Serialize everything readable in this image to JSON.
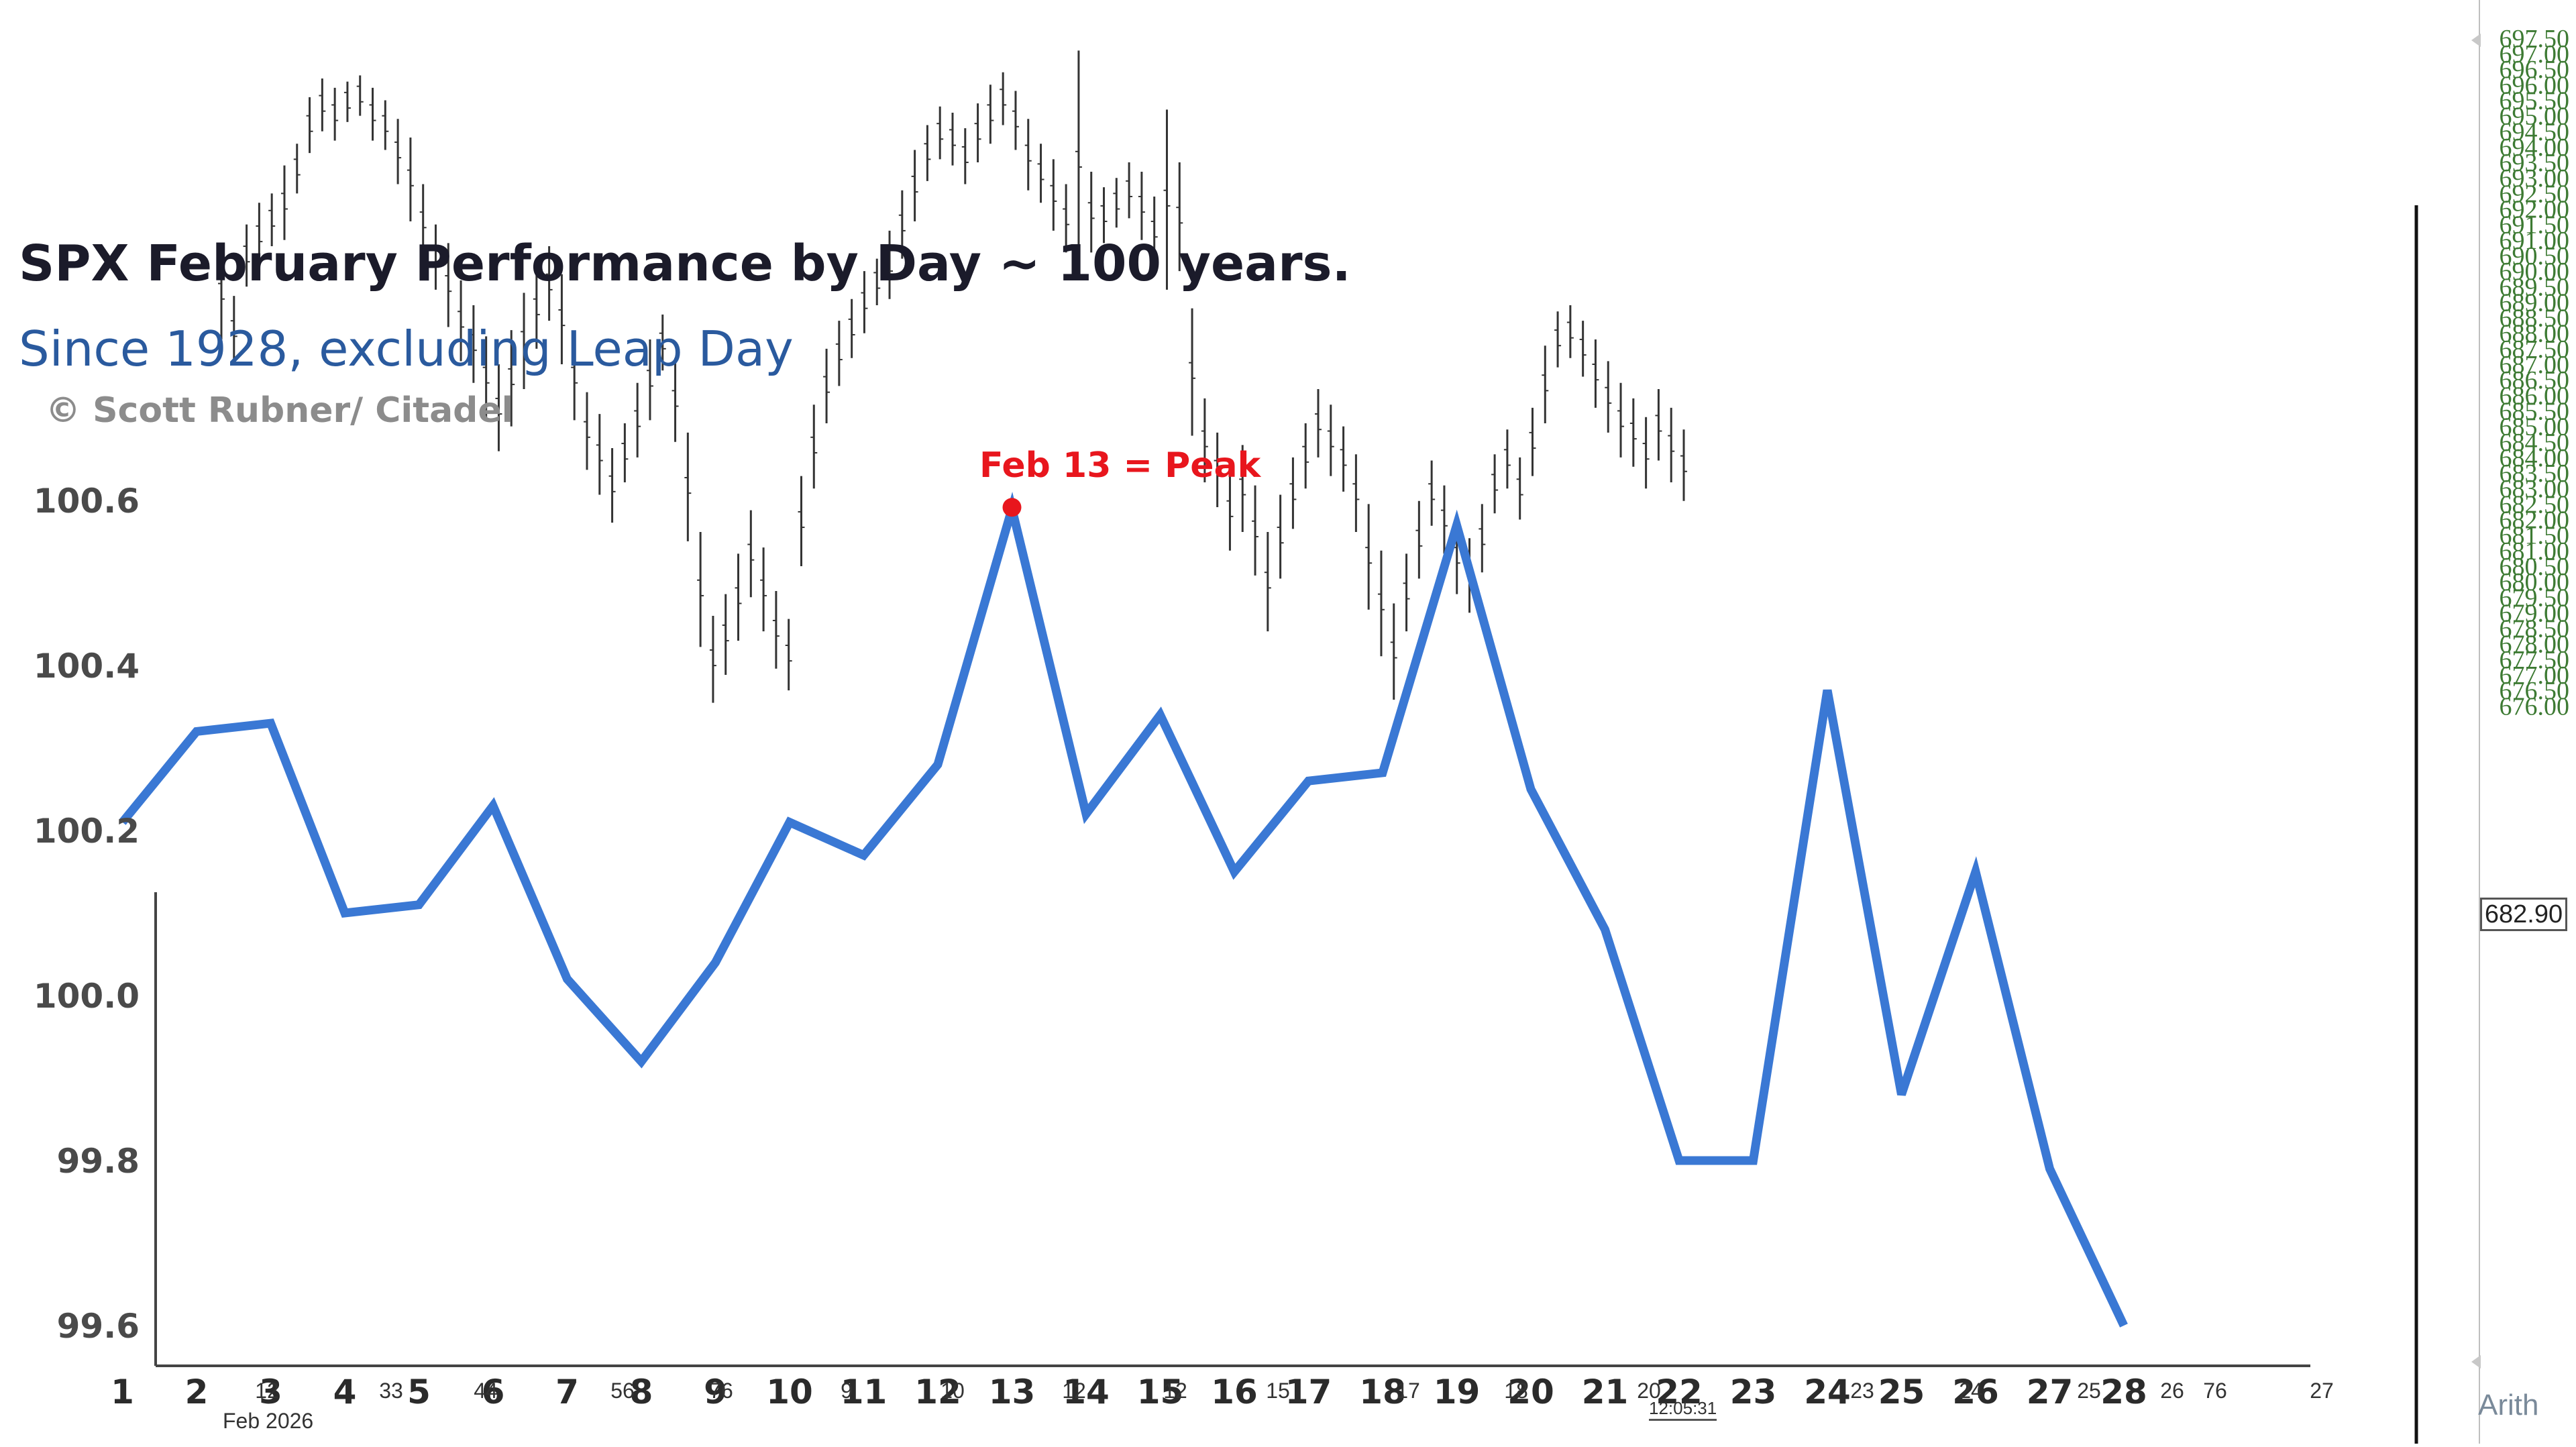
{
  "chart_data": {
    "type": "line",
    "title": "SPX February Performance by Day ~ 100 years.",
    "subtitle": "Since 1928, excluding Leap Day",
    "credit": "© Scott Rubner/ Citadel",
    "annotation": "Feb 13 = Peak",
    "annotation_point": {
      "x": 13,
      "y": 100.59
    },
    "annotation_color": "#e8161d",
    "series": [
      {
        "color": "#3a78d4",
        "x": [
          1,
          2,
          3,
          4,
          5,
          6,
          7,
          8,
          9,
          10,
          11,
          12,
          13,
          14,
          15,
          16,
          17,
          18,
          19,
          20,
          21,
          22,
          23,
          24,
          25,
          26,
          27,
          28
        ],
        "values": [
          100.21,
          100.32,
          100.33,
          100.1,
          100.11,
          100.23,
          100.02,
          99.92,
          100.04,
          100.21,
          100.17,
          100.28,
          100.59,
          100.22,
          100.34,
          100.15,
          100.26,
          100.27,
          100.57,
          100.25,
          100.08,
          99.8,
          99.8,
          100.37,
          99.88,
          100.15,
          99.79,
          99.6
        ]
      }
    ],
    "x_ticks": [
      "1",
      "2",
      "3",
      "4",
      "5",
      "6",
      "7",
      "8",
      "9",
      "10",
      "11",
      "12",
      "13",
      "14",
      "15",
      "16",
      "17",
      "18",
      "19",
      "20",
      "21",
      "22",
      "23",
      "24",
      "25",
      "26",
      "27",
      "28"
    ],
    "y_ticks": [
      "99.6",
      "99.8",
      "100.0",
      "100.2",
      "100.4",
      "100.6"
    ],
    "ylim": [
      99.55,
      100.6
    ],
    "xlim": [
      0.1,
      29.1
    ],
    "background_price_axis": {
      "ticks": [
        "697.50",
        "697.00",
        "696.50",
        "696.00",
        "695.50",
        "695.00",
        "694.50",
        "694.00",
        "693.50",
        "693.00",
        "692.50",
        "692.00",
        "691.50",
        "691.00",
        "690.50",
        "690.00",
        "689.50",
        "689.00",
        "688.50",
        "688.00",
        "687.50",
        "687.00",
        "686.50",
        "686.00",
        "685.50",
        "685.00",
        "684.50",
        "684.00",
        "683.50",
        "683.00",
        "682.50",
        "682.00",
        "681.50",
        "681.00",
        "680.50",
        "680.00",
        "679.50",
        "679.00",
        "678.50",
        "678.00",
        "677.50",
        "677.00",
        "676.50",
        "676.00"
      ],
      "last_price": "682.90",
      "scale_label": "Arith",
      "color": "#3d7a33"
    },
    "background_date_label": "Feb 2026",
    "background_time_label": "12:05:31",
    "background_x_ticks_small": [
      "12",
      "33",
      "44",
      "56",
      "76",
      "9",
      "10",
      "12",
      "12",
      "15",
      "17",
      "18",
      "20",
      "23",
      "24",
      "25",
      "26",
      "76",
      "27"
    ],
    "background_bars_high_low": [
      [
        690.8,
        687.8
      ],
      [
        689.2,
        687.0
      ],
      [
        691.5,
        689.5
      ],
      [
        692.2,
        690.1
      ],
      [
        692.5,
        690.8
      ],
      [
        693.4,
        691.0
      ],
      [
        694.1,
        692.5
      ],
      [
        695.6,
        693.8
      ],
      [
        696.2,
        694.5
      ],
      [
        695.9,
        694.2
      ],
      [
        696.1,
        694.8
      ],
      [
        696.3,
        695.0
      ],
      [
        695.9,
        694.2
      ],
      [
        695.5,
        693.9
      ],
      [
        694.9,
        692.8
      ],
      [
        694.3,
        691.6
      ],
      [
        692.8,
        690.4
      ],
      [
        691.5,
        689.4
      ],
      [
        690.9,
        688.2
      ],
      [
        689.7,
        687.1
      ],
      [
        688.9,
        686.4
      ],
      [
        687.9,
        685.3
      ],
      [
        687.0,
        684.2
      ],
      [
        688.1,
        685.0
      ],
      [
        689.3,
        686.2
      ],
      [
        690.1,
        687.5
      ],
      [
        690.8,
        688.4
      ],
      [
        689.9,
        687.0
      ],
      [
        688.0,
        685.2
      ],
      [
        686.1,
        683.6
      ],
      [
        685.4,
        682.8
      ],
      [
        684.3,
        681.9
      ],
      [
        685.1,
        683.2
      ],
      [
        686.4,
        684.0
      ],
      [
        687.8,
        685.2
      ],
      [
        688.6,
        686.8
      ],
      [
        687.2,
        684.5
      ],
      [
        684.8,
        681.3
      ],
      [
        681.6,
        677.9
      ],
      [
        678.9,
        676.1
      ],
      [
        679.6,
        677.0
      ],
      [
        680.9,
        678.1
      ],
      [
        682.3,
        679.5
      ],
      [
        681.1,
        678.4
      ],
      [
        679.7,
        677.2
      ],
      [
        678.8,
        676.5
      ],
      [
        683.4,
        680.5
      ],
      [
        685.7,
        683.0
      ],
      [
        687.5,
        685.1
      ],
      [
        688.4,
        686.3
      ],
      [
        689.1,
        687.2
      ],
      [
        690.0,
        688.0
      ],
      [
        690.4,
        688.9
      ],
      [
        691.3,
        689.1
      ],
      [
        692.6,
        690.4
      ],
      [
        693.9,
        691.6
      ],
      [
        694.7,
        692.9
      ],
      [
        695.3,
        693.6
      ],
      [
        695.1,
        693.4
      ],
      [
        694.6,
        692.8
      ],
      [
        695.4,
        693.5
      ],
      [
        696.0,
        694.1
      ],
      [
        696.4,
        694.7
      ],
      [
        695.8,
        693.9
      ],
      [
        694.9,
        692.6
      ],
      [
        694.1,
        692.2
      ],
      [
        693.6,
        691.3
      ],
      [
        692.8,
        690.6
      ],
      [
        697.1,
        690.0
      ],
      [
        693.2,
        690.6
      ],
      [
        692.7,
        690.9
      ],
      [
        693.0,
        691.4
      ],
      [
        693.5,
        691.7
      ],
      [
        693.2,
        691.0
      ],
      [
        692.4,
        690.2
      ],
      [
        695.2,
        689.4
      ],
      [
        693.5,
        690.0
      ],
      [
        688.8,
        684.7
      ],
      [
        685.9,
        683.2
      ],
      [
        684.8,
        682.4
      ],
      [
        683.6,
        681.0
      ],
      [
        684.4,
        681.6
      ],
      [
        683.1,
        680.2
      ],
      [
        681.6,
        678.4
      ],
      [
        682.8,
        680.1
      ],
      [
        684.0,
        681.7
      ],
      [
        685.1,
        683.0
      ],
      [
        686.2,
        684.0
      ],
      [
        685.7,
        683.4
      ],
      [
        685.0,
        682.9
      ],
      [
        684.1,
        681.6
      ],
      [
        682.5,
        679.1
      ],
      [
        681.0,
        677.6
      ],
      [
        679.3,
        676.2
      ],
      [
        680.9,
        678.4
      ],
      [
        682.6,
        680.1
      ],
      [
        683.9,
        681.8
      ],
      [
        683.1,
        680.9
      ],
      [
        682.0,
        679.6
      ],
      [
        681.4,
        679.0
      ],
      [
        682.5,
        680.3
      ],
      [
        684.1,
        682.2
      ],
      [
        684.9,
        683.0
      ],
      [
        684.0,
        682.0
      ],
      [
        685.6,
        683.4
      ],
      [
        687.6,
        685.1
      ],
      [
        688.7,
        686.9
      ],
      [
        688.9,
        687.2
      ],
      [
        688.4,
        686.6
      ],
      [
        687.8,
        685.6
      ],
      [
        687.1,
        684.8
      ],
      [
        686.4,
        684.0
      ],
      [
        685.9,
        683.7
      ],
      [
        685.3,
        683.0
      ],
      [
        686.2,
        683.9
      ],
      [
        685.6,
        683.2
      ],
      [
        684.9,
        682.6
      ]
    ]
  }
}
